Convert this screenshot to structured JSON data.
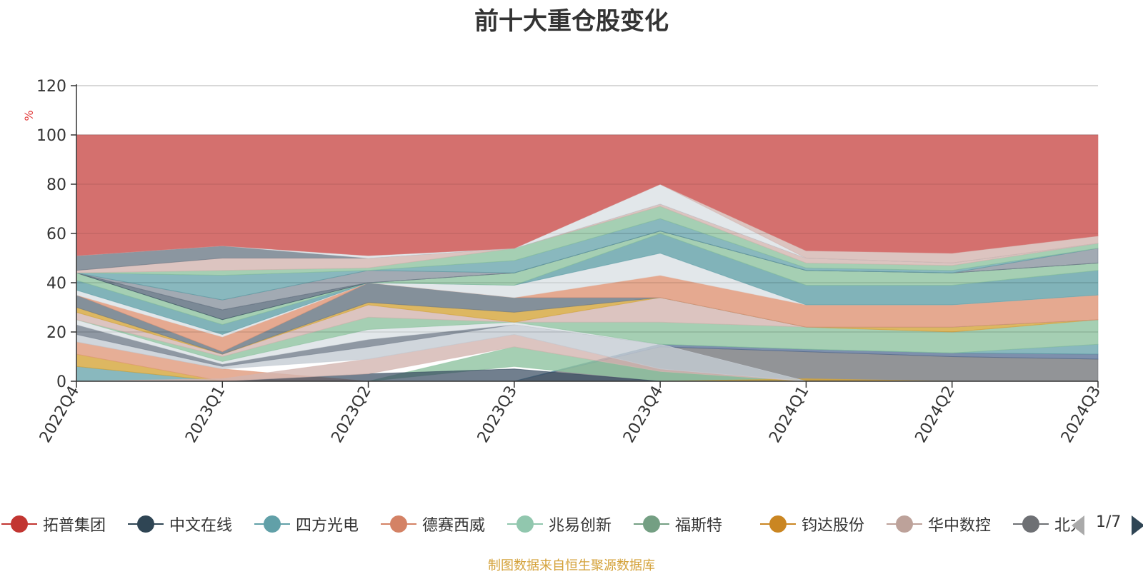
{
  "title": "前十大重仓股变化",
  "source_note": "制图数据来自恒生聚源数据库",
  "legend_page": "1/7",
  "chart_data": {
    "type": "area",
    "title": "前十大重仓股变化",
    "ylabel": "%",
    "ylim": [
      0,
      120
    ],
    "yticks": [
      0,
      20,
      40,
      60,
      80,
      100,
      120
    ],
    "grid": true,
    "legend_position": "bottom",
    "x": [
      "2022Q4",
      "2023Q1",
      "2023Q2",
      "2023Q3",
      "2023Q4",
      "2024Q1",
      "2024Q2",
      "2024Q3"
    ],
    "bands": [
      {
        "color": "#6e7074",
        "opacity": 0.75,
        "values": [
          [
            0,
            0
          ],
          [
            0,
            0
          ],
          [
            0,
            0
          ],
          [
            0,
            0
          ],
          [
            0,
            14
          ],
          [
            0,
            12
          ],
          [
            0,
            10
          ],
          [
            0,
            9
          ]
        ]
      },
      {
        "color": "#516b91",
        "opacity": 0.75,
        "values": [
          [
            0,
            0
          ],
          [
            0,
            0
          ],
          [
            0,
            0
          ],
          [
            0,
            0
          ],
          [
            14,
            15
          ],
          [
            12,
            13
          ],
          [
            10,
            11.5
          ],
          [
            9,
            11
          ]
        ]
      },
      {
        "color": "#61a0a8",
        "opacity": 0.75,
        "values": [
          [
            0,
            6
          ],
          [
            0,
            0
          ],
          [
            0,
            0
          ],
          [
            0,
            0
          ],
          [
            15,
            15
          ],
          [
            13,
            13
          ],
          [
            11.5,
            11.5
          ],
          [
            11,
            15
          ]
        ]
      },
      {
        "color": "#8ec3a0",
        "opacity": 0.8,
        "values": [
          [
            0,
            0
          ],
          [
            0,
            0
          ],
          [
            0,
            0
          ],
          [
            6,
            14
          ],
          [
            0,
            4
          ],
          [
            0,
            0
          ],
          [
            0,
            0
          ],
          [
            0,
            0
          ]
        ]
      },
      {
        "color": "#d4a53a",
        "opacity": 0.8,
        "values": [
          [
            6,
            11
          ],
          [
            0,
            0
          ],
          [
            0,
            0
          ],
          [
            0,
            0
          ],
          [
            0,
            0
          ],
          [
            0,
            1
          ],
          [
            0,
            0
          ],
          [
            0,
            0
          ]
        ]
      },
      {
        "color": "#e09a7c",
        "opacity": 0.8,
        "values": [
          [
            11,
            16
          ],
          [
            0,
            5
          ],
          [
            0,
            0
          ],
          [
            0,
            0
          ],
          [
            0,
            0
          ],
          [
            0,
            0
          ],
          [
            0,
            0
          ],
          [
            0,
            0
          ]
        ]
      },
      {
        "color": "#34495e",
        "opacity": 0.7,
        "values": [
          [
            0,
            0
          ],
          [
            0,
            0
          ],
          [
            0,
            3
          ],
          [
            0,
            5
          ],
          [
            0,
            0
          ],
          [
            0,
            0
          ],
          [
            0,
            0
          ],
          [
            0,
            0
          ]
        ]
      },
      {
        "color": "#d3b5b0",
        "opacity": 0.8,
        "values": [
          [
            0,
            0
          ],
          [
            0,
            1
          ],
          [
            3,
            9
          ],
          [
            14,
            19
          ],
          [
            4,
            5
          ],
          [
            0,
            0
          ],
          [
            0,
            0
          ],
          [
            0,
            0
          ]
        ]
      },
      {
        "color": "#c4ccd3",
        "opacity": 0.8,
        "values": [
          [
            16,
            19
          ],
          [
            5,
            6
          ],
          [
            9,
            14
          ],
          [
            19,
            23
          ],
          [
            5,
            15
          ],
          [
            0,
            0
          ],
          [
            0,
            0
          ],
          [
            0,
            0
          ]
        ]
      },
      {
        "color": "#7b8693",
        "opacity": 0.85,
        "values": [
          [
            19,
            23
          ],
          [
            6,
            7
          ],
          [
            14,
            17
          ],
          [
            23,
            23
          ],
          [
            15,
            15
          ],
          [
            0,
            0
          ],
          [
            0,
            0
          ],
          [
            0,
            0
          ]
        ]
      },
      {
        "color": "#dfe4e8",
        "opacity": 0.9,
        "values": [
          [
            23,
            25
          ],
          [
            7,
            8
          ],
          [
            17,
            21
          ],
          [
            23,
            24
          ],
          [
            15,
            15
          ],
          [
            0,
            0
          ],
          [
            0,
            0
          ],
          [
            0,
            0
          ]
        ]
      },
      {
        "color": "#8ec3a0",
        "opacity": 0.8,
        "values": [
          [
            25,
            25
          ],
          [
            8,
            10
          ],
          [
            21,
            26
          ],
          [
            24,
            24
          ],
          [
            15,
            24
          ],
          [
            13,
            22
          ],
          [
            11.5,
            20
          ],
          [
            15,
            25
          ]
        ]
      },
      {
        "color": "#d3b5b0",
        "opacity": 0.8,
        "values": [
          [
            25,
            28
          ],
          [
            10,
            11
          ],
          [
            26,
            31
          ],
          [
            24,
            24
          ],
          [
            24,
            34
          ],
          [
            22,
            22
          ],
          [
            20,
            20
          ],
          [
            25,
            25
          ]
        ]
      },
      {
        "color": "#d4a53a",
        "opacity": 0.8,
        "values": [
          [
            28,
            30
          ],
          [
            11,
            11
          ],
          [
            31,
            32
          ],
          [
            24,
            28
          ],
          [
            34,
            34
          ],
          [
            22,
            22
          ],
          [
            20,
            22
          ],
          [
            25,
            25
          ]
        ]
      },
      {
        "color": "#6e7c88",
        "opacity": 0.85,
        "values": [
          [
            30,
            35
          ],
          [
            11,
            12
          ],
          [
            32,
            40
          ],
          [
            28,
            34
          ],
          [
            34,
            34
          ],
          [
            22,
            22
          ],
          [
            22,
            22
          ],
          [
            25,
            25
          ]
        ]
      },
      {
        "color": "#e09a7c",
        "opacity": 0.85,
        "values": [
          [
            35,
            35
          ],
          [
            12,
            18
          ],
          [
            40,
            40
          ],
          [
            34,
            34
          ],
          [
            34,
            43
          ],
          [
            22,
            31
          ],
          [
            22,
            31
          ],
          [
            25,
            35
          ]
        ]
      },
      {
        "color": "#dfe4e8",
        "opacity": 0.9,
        "values": [
          [
            35,
            37
          ],
          [
            18,
            19
          ],
          [
            40,
            40
          ],
          [
            34,
            39
          ],
          [
            43,
            52
          ],
          [
            31,
            31
          ],
          [
            31,
            31
          ],
          [
            35,
            35
          ]
        ]
      },
      {
        "color": "#61a0a8",
        "opacity": 0.8,
        "values": [
          [
            37,
            41
          ],
          [
            19,
            23
          ],
          [
            40,
            40
          ],
          [
            39,
            39
          ],
          [
            52,
            60
          ],
          [
            31,
            39
          ],
          [
            31,
            39
          ],
          [
            35,
            45
          ]
        ]
      },
      {
        "color": "#8ec3a0",
        "opacity": 0.8,
        "values": [
          [
            41,
            44
          ],
          [
            23,
            25
          ],
          [
            40,
            40
          ],
          [
            39,
            44
          ],
          [
            60,
            61
          ],
          [
            39,
            45
          ],
          [
            39,
            44
          ],
          [
            45,
            48
          ]
        ]
      },
      {
        "color": "#34495e",
        "opacity": 0.65,
        "values": [
          [
            44,
            44
          ],
          [
            25,
            29
          ],
          [
            40,
            40
          ],
          [
            44,
            44
          ],
          [
            61,
            61
          ],
          [
            45,
            45
          ],
          [
            44,
            44
          ],
          [
            48,
            48
          ]
        ]
      },
      {
        "color": "#7b8693",
        "opacity": 0.7,
        "values": [
          [
            44,
            44
          ],
          [
            29,
            33
          ],
          [
            40,
            45
          ],
          [
            44,
            44
          ],
          [
            61,
            61
          ],
          [
            45,
            45
          ],
          [
            44,
            44
          ],
          [
            48,
            54
          ]
        ]
      },
      {
        "color": "#61a0a8",
        "opacity": 0.75,
        "values": [
          [
            44,
            44
          ],
          [
            33,
            43
          ],
          [
            45,
            45
          ],
          [
            44,
            49
          ],
          [
            61,
            66
          ],
          [
            45,
            46
          ],
          [
            44,
            45
          ],
          [
            54,
            54
          ]
        ]
      },
      {
        "color": "#8ec3a0",
        "opacity": 0.8,
        "values": [
          [
            44,
            44
          ],
          [
            43,
            45
          ],
          [
            45,
            46
          ],
          [
            49,
            54
          ],
          [
            66,
            71
          ],
          [
            46,
            48
          ],
          [
            45,
            47
          ],
          [
            54,
            56
          ]
        ]
      },
      {
        "color": "#d3b5b0",
        "opacity": 0.8,
        "values": [
          [
            44,
            45
          ],
          [
            45,
            50
          ],
          [
            46,
            50
          ],
          [
            54,
            54
          ],
          [
            71,
            72
          ],
          [
            48,
            50
          ],
          [
            47,
            48
          ],
          [
            56,
            56
          ]
        ]
      },
      {
        "color": "#6e7c88",
        "opacity": 0.8,
        "values": [
          [
            45,
            51
          ],
          [
            50,
            55
          ],
          [
            50,
            50
          ],
          [
            54,
            54
          ],
          [
            72,
            72
          ],
          [
            50,
            50
          ],
          [
            48,
            48
          ],
          [
            56,
            56
          ]
        ]
      },
      {
        "color": "#dfe4e8",
        "opacity": 0.9,
        "values": [
          [
            51,
            51
          ],
          [
            55,
            55
          ],
          [
            50,
            51
          ],
          [
            54,
            54
          ],
          [
            72,
            80
          ],
          [
            50,
            50
          ],
          [
            48,
            48
          ],
          [
            56,
            56
          ]
        ]
      },
      {
        "color": "#d3b5b0",
        "opacity": 0.8,
        "values": [
          [
            51,
            51
          ],
          [
            55,
            55
          ],
          [
            51,
            51
          ],
          [
            54,
            54
          ],
          [
            80,
            80
          ],
          [
            50,
            53
          ],
          [
            48,
            52
          ],
          [
            56,
            59
          ]
        ]
      },
      {
        "color": "#d4706e",
        "opacity": 1.0,
        "values": [
          [
            51,
            100
          ],
          [
            55,
            100
          ],
          [
            51,
            100
          ],
          [
            54,
            100
          ],
          [
            80,
            100
          ],
          [
            53,
            100
          ],
          [
            52,
            100
          ],
          [
            59,
            100
          ]
        ]
      }
    ],
    "series": [
      {
        "name": "拓普集团",
        "color": "#c23531"
      },
      {
        "name": "中文在线",
        "color": "#2f4554"
      },
      {
        "name": "四方光电",
        "color": "#61a0a8"
      },
      {
        "name": "德赛西威",
        "color": "#d48265"
      },
      {
        "name": "兆易创新",
        "color": "#91c7ae"
      },
      {
        "name": "福斯特",
        "color": "#749f83"
      },
      {
        "name": "钧达股份",
        "color": "#ca8622"
      },
      {
        "name": "华中数控",
        "color": "#bda29a"
      },
      {
        "name": "北方华创",
        "color": "#6e7074"
      }
    ]
  }
}
